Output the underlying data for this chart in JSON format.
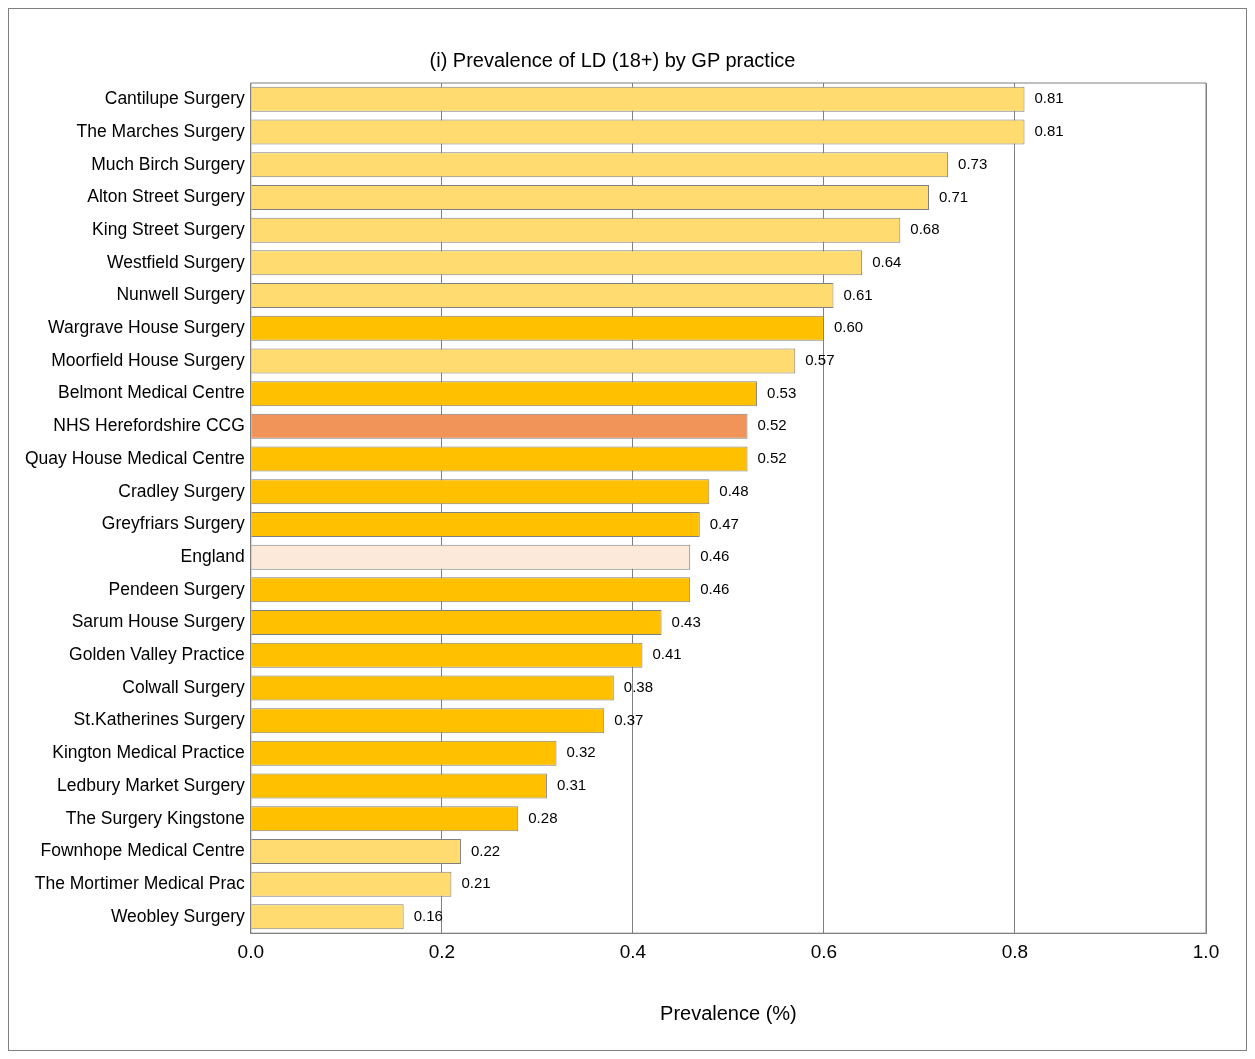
{
  "chart_data": {
    "type": "bar",
    "orientation": "horizontal",
    "title": "(i) Prevalence of LD (18+) by GP practice",
    "xlabel": "Prevalence (%)",
    "categories": [
      "Cantilupe Surgery",
      "The Marches Surgery",
      "Much Birch Surgery",
      "Alton Street Surgery",
      "King Street Surgery",
      "Westfield Surgery",
      "Nunwell Surgery",
      "Wargrave House Surgery",
      "Moorfield House Surgery",
      "Belmont Medical Centre",
      "NHS Herefordshire CCG",
      "Quay House Medical Centre",
      "Cradley Surgery",
      "Greyfriars Surgery",
      "England",
      "Pendeen Surgery",
      "Sarum House Surgery",
      "Golden Valley Practice",
      "Colwall Surgery",
      "St.Katherines Surgery",
      "Kington Medical Practice",
      "Ledbury Market Surgery",
      "The Surgery Kingstone",
      "Fownhope Medical Centre",
      "The Mortimer Medical Prac",
      "Weobley Surgery"
    ],
    "values": [
      0.81,
      0.81,
      0.73,
      0.71,
      0.68,
      0.64,
      0.61,
      0.6,
      0.57,
      0.53,
      0.52,
      0.52,
      0.48,
      0.47,
      0.46,
      0.46,
      0.43,
      0.41,
      0.38,
      0.37,
      0.32,
      0.31,
      0.28,
      0.22,
      0.21,
      0.16
    ],
    "value_labels": [
      "0.81",
      "0.81",
      "0.73",
      "0.71",
      "0.68",
      "0.64",
      "0.61",
      "0.60",
      "0.57",
      "0.53",
      "0.52",
      "0.52",
      "0.48",
      "0.47",
      "0.46",
      "0.46",
      "0.43",
      "0.41",
      "0.38",
      "0.37",
      "0.32",
      "0.31",
      "0.28",
      "0.22",
      "0.21",
      "0.16"
    ],
    "colors": [
      "#ffdb70",
      "#ffdb70",
      "#ffdb70",
      "#ffdb70",
      "#ffdb70",
      "#ffdb70",
      "#ffdb70",
      "#ffc000",
      "#ffdb70",
      "#ffc000",
      "#f0945a",
      "#ffc000",
      "#ffc000",
      "#ffc000",
      "#fde9d9",
      "#ffc000",
      "#ffc000",
      "#ffc000",
      "#ffc000",
      "#ffc000",
      "#ffc000",
      "#ffc000",
      "#ffc000",
      "#ffdb70",
      "#ffdb70",
      "#ffdb70"
    ],
    "xlim": [
      0,
      1
    ],
    "xticks": [
      {
        "value": 0,
        "label": "0.0"
      },
      {
        "value": 0.2,
        "label": "0.2"
      },
      {
        "value": 0.4,
        "label": "0.4"
      },
      {
        "value": 0.6,
        "label": "0.6"
      },
      {
        "value": 0.8,
        "label": "0.8"
      },
      {
        "value": 1,
        "label": "1.0"
      }
    ],
    "grid": "x",
    "legend": false
  }
}
